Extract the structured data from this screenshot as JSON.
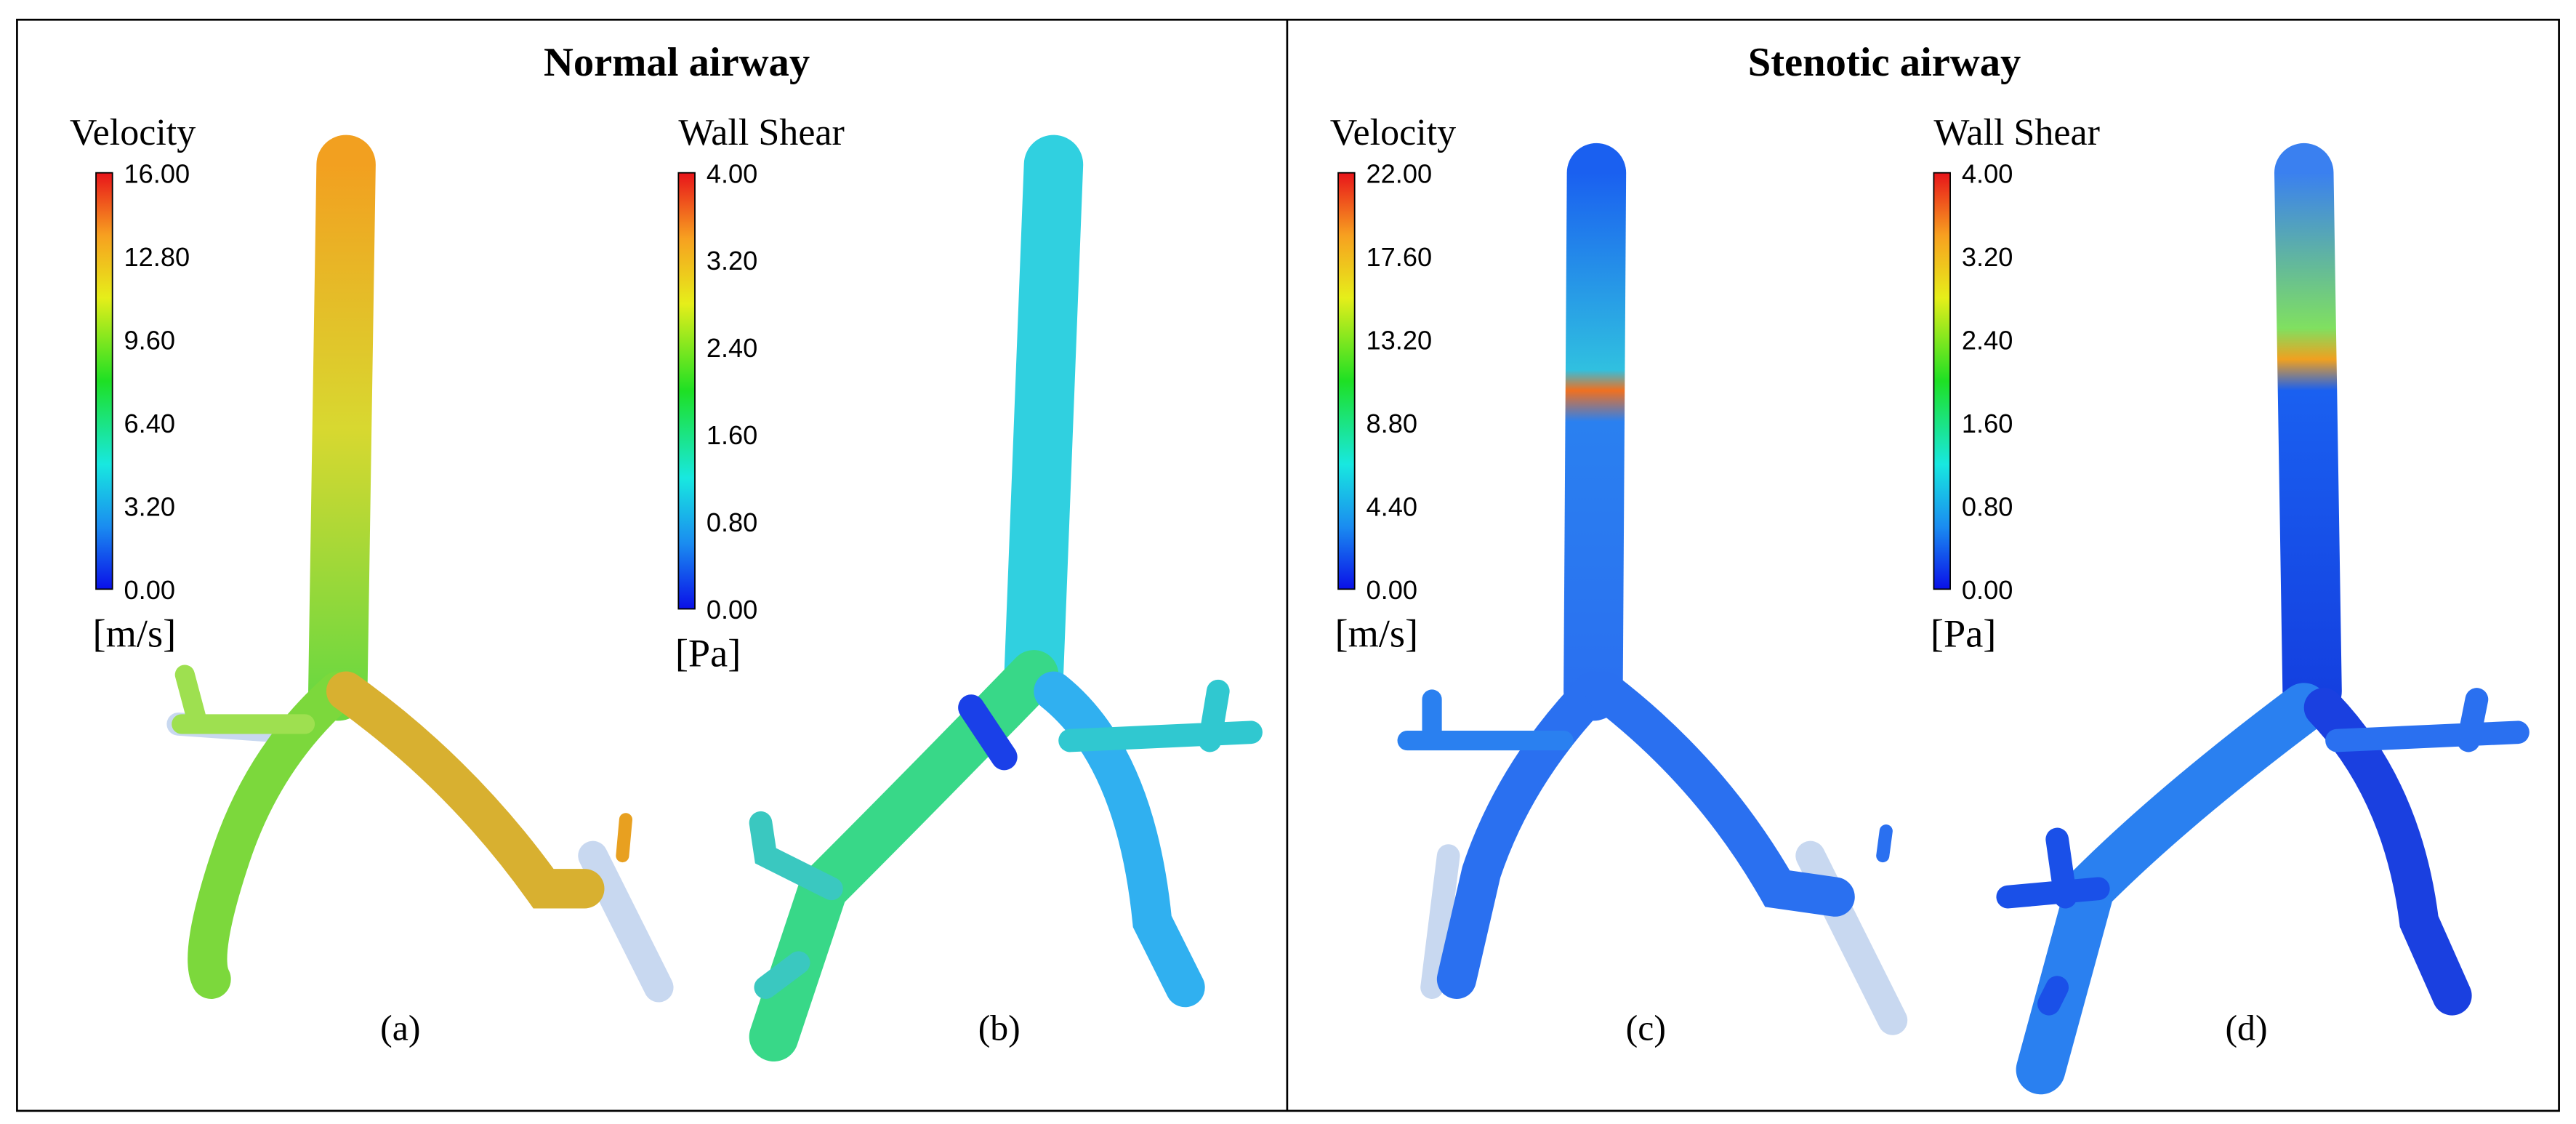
{
  "panels": [
    {
      "title": "Normal airway",
      "colorbars": [
        {
          "title": "Velocity",
          "ticks": [
            "16.00",
            "12.80",
            "9.60",
            "6.40",
            "3.20",
            "0.00"
          ],
          "unit": "[m/s]"
        },
        {
          "title": "Wall Shear",
          "ticks": [
            "4.00",
            "3.20",
            "2.40",
            "1.60",
            "0.80",
            "0.00"
          ],
          "unit": "[Pa]"
        }
      ],
      "labels": [
        "(a)",
        "(b)"
      ]
    },
    {
      "title": "Stenotic airway",
      "colorbars": [
        {
          "title": "Velocity",
          "ticks": [
            "22.00",
            "17.60",
            "13.20",
            "8.80",
            "4.40",
            "0.00"
          ],
          "unit": "[m/s]"
        },
        {
          "title": "Wall Shear",
          "ticks": [
            "4.00",
            "3.20",
            "2.40",
            "1.60",
            "0.80",
            "0.00"
          ],
          "unit": "[Pa]"
        }
      ],
      "labels": [
        "(c)",
        "(d)"
      ]
    }
  ]
}
